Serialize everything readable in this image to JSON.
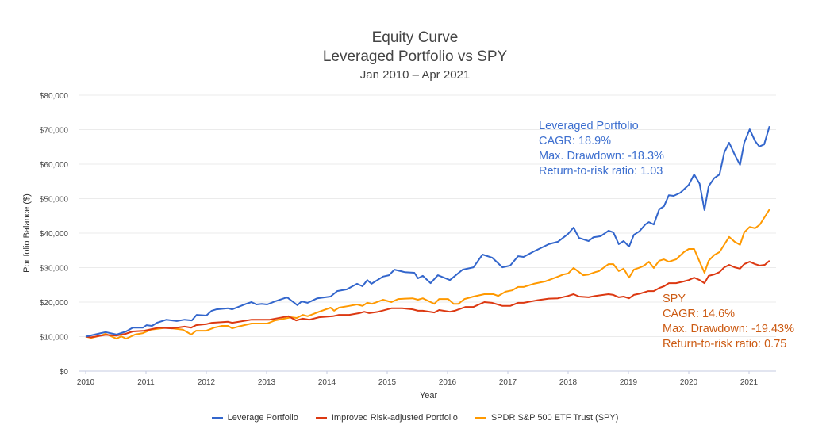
{
  "chart_data": {
    "type": "line",
    "title": "Equity Curve",
    "subtitle": "Leveraged Portfolio vs SPY",
    "subtitle2": "Jan 2010 – Apr 2021",
    "xlabel": "Year",
    "ylabel": "Portfolio Balance ($)",
    "ylim": [
      0,
      80000
    ],
    "xlim": [
      2010,
      2021.5
    ],
    "y_ticks": [
      "$0",
      "$10,000",
      "$20,000",
      "$30,000",
      "$40,000",
      "$50,000",
      "$60,000",
      "$70,000",
      "$80,000"
    ],
    "x_ticks": [
      "2010",
      "2011",
      "2012",
      "2013",
      "2014",
      "2015",
      "2016",
      "2017",
      "2018",
      "2019",
      "2020",
      "2021"
    ],
    "grid": true,
    "legend_position": "bottom",
    "series": [
      {
        "name": "Leverage Portfolio",
        "color": "#3366cc",
        "x": [
          0,
          0.33,
          0.51,
          0.67,
          0.78,
          0.95,
          1.01,
          1.1,
          1.18,
          1.34,
          1.51,
          1.64,
          1.76,
          1.84,
          2.0,
          2.09,
          2.17,
          2.36,
          2.43,
          2.66,
          2.75,
          2.83,
          2.92,
          3.01,
          3.14,
          3.34,
          3.51,
          3.58,
          3.68,
          3.84,
          4.06,
          4.17,
          4.33,
          4.5,
          4.59,
          4.67,
          4.74,
          4.93,
          5.03,
          5.12,
          5.29,
          5.45,
          5.51,
          5.59,
          5.72,
          5.84,
          6.04,
          6.25,
          6.43,
          6.58,
          6.74,
          6.91,
          7.04,
          7.17,
          7.26,
          7.43,
          7.68,
          7.83,
          8.0,
          8.09,
          8.18,
          8.34,
          8.42,
          8.54,
          8.67,
          8.75,
          8.84,
          8.92,
          9.01,
          9.09,
          9.18,
          9.28,
          9.34,
          9.42,
          9.51,
          9.59,
          9.67,
          9.75,
          9.86,
          10.0,
          10.09,
          10.18,
          10.26,
          10.33,
          10.42,
          10.51,
          10.59,
          10.67,
          10.76,
          10.85,
          10.92,
          11.01,
          11.1,
          11.17,
          11.25,
          11.34
        ],
        "values": [
          10000,
          11300,
          10600,
          11500,
          12600,
          12600,
          13300,
          13100,
          14000,
          14900,
          14500,
          14900,
          14700,
          16300,
          16100,
          17500,
          17900,
          18200,
          17900,
          19500,
          20000,
          19300,
          19500,
          19300,
          20200,
          21400,
          19100,
          20200,
          19800,
          21100,
          21600,
          23200,
          23700,
          25300,
          24600,
          26400,
          25300,
          27400,
          27800,
          29400,
          28700,
          28500,
          26900,
          27600,
          25500,
          27800,
          26400,
          29400,
          30100,
          33800,
          32900,
          30100,
          30600,
          33300,
          33100,
          34700,
          36800,
          37500,
          39800,
          41600,
          38600,
          37700,
          38800,
          39100,
          40700,
          40200,
          36800,
          37700,
          36100,
          39500,
          40500,
          42500,
          43200,
          42500,
          46900,
          47800,
          51000,
          50800,
          51700,
          54000,
          57000,
          54300,
          46700,
          53600,
          55900,
          57000,
          63400,
          66200,
          62800,
          59800,
          66200,
          70100,
          66700,
          65100,
          65700,
          71000
        ]
      },
      {
        "name": "Improved Risk-adjusted Portfolio",
        "color": "#dc3912",
        "x": [
          0,
          0.09,
          0.33,
          0.51,
          0.66,
          0.78,
          0.97,
          1.21,
          1.43,
          1.64,
          1.75,
          1.83,
          2.0,
          2.09,
          2.36,
          2.43,
          2.75,
          3.05,
          3.36,
          3.49,
          3.6,
          3.71,
          3.87,
          4.1,
          4.2,
          4.37,
          4.54,
          4.62,
          4.7,
          4.85,
          5.07,
          5.25,
          5.42,
          5.51,
          5.59,
          5.78,
          5.86,
          6.04,
          6.12,
          6.3,
          6.43,
          6.61,
          6.74,
          6.91,
          7.04,
          7.17,
          7.26,
          7.48,
          7.68,
          7.83,
          8.0,
          8.09,
          8.18,
          8.34,
          8.45,
          8.67,
          8.75,
          8.84,
          8.92,
          9.01,
          9.09,
          9.2,
          9.33,
          9.42,
          9.51,
          9.59,
          9.67,
          9.79,
          9.92,
          10.0,
          10.09,
          10.18,
          10.26,
          10.33,
          10.42,
          10.51,
          10.59,
          10.67,
          10.76,
          10.85,
          10.92,
          11.01,
          11.1,
          11.18,
          11.26,
          11.34
        ],
        "values": [
          10000,
          9800,
          10500,
          10300,
          10800,
          11500,
          11700,
          12600,
          12400,
          12900,
          12600,
          13300,
          13600,
          14000,
          14300,
          14000,
          14900,
          14900,
          15900,
          14700,
          15200,
          14900,
          15600,
          15900,
          16300,
          16300,
          16800,
          17200,
          16800,
          17200,
          18200,
          18200,
          17900,
          17500,
          17500,
          17000,
          17700,
          17200,
          17500,
          18600,
          18600,
          20000,
          19800,
          18900,
          18900,
          19800,
          19800,
          20500,
          21000,
          21100,
          21800,
          22300,
          21600,
          21400,
          21800,
          22300,
          22100,
          21400,
          21600,
          21100,
          22100,
          22500,
          23200,
          23200,
          24100,
          24600,
          25500,
          25500,
          26000,
          26400,
          27100,
          26400,
          25500,
          27600,
          28000,
          28700,
          30100,
          30800,
          30100,
          29700,
          31000,
          31700,
          31000,
          30600,
          30800,
          32000
        ]
      },
      {
        "name": "SPDR S&P 500 ETF Trust (SPY)",
        "color": "#ff9900",
        "x": [
          0,
          0.09,
          0.25,
          0.33,
          0.51,
          0.59,
          0.67,
          0.82,
          0.95,
          1.08,
          1.34,
          1.61,
          1.75,
          1.83,
          2.0,
          2.13,
          2.26,
          2.36,
          2.43,
          2.53,
          2.75,
          3.01,
          3.14,
          3.41,
          3.5,
          3.6,
          3.68,
          3.87,
          4.06,
          4.12,
          4.2,
          4.37,
          4.5,
          4.59,
          4.67,
          4.75,
          4.93,
          5.07,
          5.18,
          5.42,
          5.51,
          5.59,
          5.78,
          5.86,
          6.01,
          6.1,
          6.18,
          6.28,
          6.43,
          6.61,
          6.76,
          6.84,
          6.96,
          7.07,
          7.17,
          7.26,
          7.43,
          7.62,
          7.79,
          7.92,
          8.0,
          8.09,
          8.25,
          8.34,
          8.45,
          8.51,
          8.67,
          8.75,
          8.84,
          8.92,
          9.01,
          9.09,
          9.2,
          9.26,
          9.34,
          9.42,
          9.51,
          9.59,
          9.67,
          9.79,
          9.92,
          10.0,
          10.09,
          10.18,
          10.26,
          10.33,
          10.42,
          10.51,
          10.67,
          10.76,
          10.85,
          10.92,
          11.01,
          11.1,
          11.18,
          11.34
        ],
        "values": [
          10000,
          9600,
          10300,
          10800,
          9400,
          10100,
          9400,
          10600,
          11000,
          12000,
          12600,
          12000,
          10600,
          11700,
          11700,
          12600,
          13100,
          13100,
          12400,
          12900,
          13800,
          13800,
          14700,
          15600,
          15400,
          16300,
          15900,
          17200,
          18400,
          17500,
          18400,
          18900,
          19300,
          18900,
          19800,
          19500,
          20700,
          20000,
          20900,
          21100,
          20700,
          21100,
          19500,
          20900,
          20900,
          19500,
          19500,
          20900,
          21600,
          22300,
          22300,
          21800,
          23000,
          23400,
          24400,
          24400,
          25300,
          26000,
          27100,
          28000,
          28300,
          29900,
          27800,
          28000,
          28700,
          29000,
          31000,
          31000,
          29000,
          29700,
          27100,
          29400,
          30100,
          30600,
          31700,
          29900,
          32000,
          32400,
          31700,
          32400,
          34500,
          35400,
          35400,
          31700,
          28500,
          32000,
          33600,
          34500,
          38900,
          37500,
          36600,
          40200,
          41800,
          41400,
          42500,
          46900
        ]
      }
    ],
    "annotations": [
      {
        "id": "lev",
        "color": "#3d6fcf",
        "lines": [
          "Leveraged Portfolio",
          "CAGR: 18.9%",
          "Max. Drawdown: -18.3%",
          "Return-to-risk ratio: 1.03"
        ]
      },
      {
        "id": "spy",
        "color": "#cc5a12",
        "lines": [
          "SPY",
          "CAGR: 14.6%",
          "Max. Drawdown: -19.43%",
          "Return-to-risk ratio: 0.75"
        ]
      }
    ]
  }
}
